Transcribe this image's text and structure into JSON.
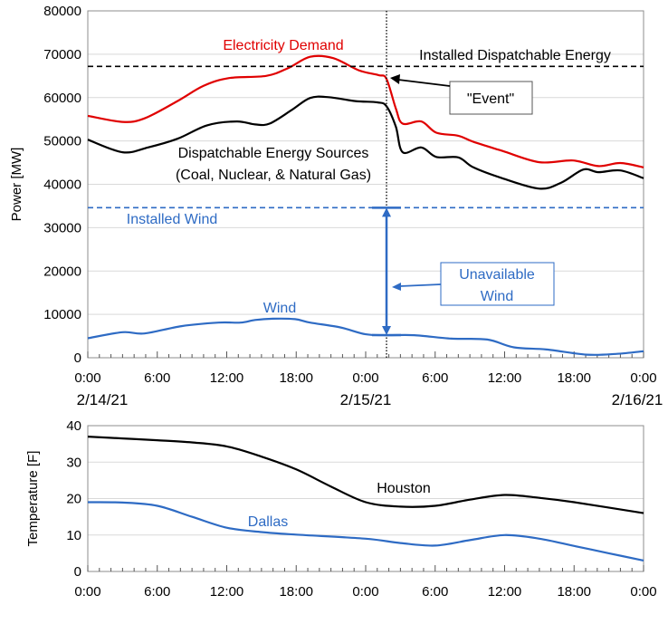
{
  "colors": {
    "demand": "#e00000",
    "dispatchable": "#000000",
    "wind": "#2e6bc4",
    "grid": "#d9d9d9",
    "houston": "#000000",
    "dallas": "#2e6bc4"
  },
  "chart_data": [
    {
      "type": "line",
      "ylabel": "Power [MW]",
      "ylim": [
        0,
        80000
      ],
      "yticks": [
        "0",
        "10000",
        "20000",
        "30000",
        "40000",
        "50000",
        "60000",
        "70000",
        "80000"
      ],
      "xlim_hours": [
        0,
        48
      ],
      "xticks": [
        "0:00",
        "6:00",
        "12:00",
        "18:00",
        "0:00",
        "6:00",
        "12:00",
        "18:00",
        "0:00"
      ],
      "date_labels": [
        "2/14/21",
        "2/15/21",
        "2/16/21"
      ],
      "grid": true,
      "series": [
        {
          "name": "Electricity Demand",
          "key": "demand",
          "x": [
            0,
            3,
            4.9,
            7.75,
            10,
            12.2,
            15.4,
            17.3,
            19.2,
            21.2,
            23.4,
            25.1,
            25.8,
            26.6,
            27.2,
            28.8,
            30.1,
            32,
            33.3,
            35.8,
            39,
            41.9,
            44.1,
            46,
            48
          ],
          "y": [
            55800,
            54400,
            55200,
            59200,
            62700,
            64500,
            65000,
            66800,
            69400,
            69100,
            66300,
            65200,
            64300,
            57500,
            54000,
            54500,
            51900,
            51200,
            49800,
            47700,
            45100,
            45500,
            44200,
            44900,
            43900
          ]
        },
        {
          "name": "Dispatchable Energy Sources",
          "key": "dispatchable",
          "x": [
            0,
            3,
            5.2,
            7.75,
            10.3,
            12.85,
            14.45,
            15.7,
            17.6,
            19.2,
            20.8,
            23.1,
            25,
            25.8,
            26.6,
            27.2,
            28.8,
            30.1,
            32,
            33.3,
            35.8,
            39,
            40.9,
            42.8,
            44.1,
            46,
            48
          ],
          "y": [
            50300,
            47400,
            48500,
            50500,
            53600,
            54500,
            53800,
            54000,
            57100,
            59900,
            60100,
            59200,
            58900,
            58000,
            53300,
            47400,
            48500,
            46300,
            46200,
            43900,
            41400,
            39000,
            40400,
            43400,
            42800,
            43200,
            41400
          ]
        },
        {
          "name": "Wind",
          "key": "wind",
          "x": [
            0,
            3,
            4.9,
            8.1,
            11.3,
            13.2,
            14.45,
            16,
            17.9,
            19.2,
            21.8,
            24,
            25.8,
            28.2,
            31.4,
            34.5,
            36.8,
            39.6,
            43.1,
            45.7,
            48
          ],
          "y": [
            4500,
            5900,
            5600,
            7300,
            8100,
            8100,
            8700,
            9000,
            8900,
            8100,
            7000,
            5400,
            5200,
            5200,
            4400,
            4200,
            2400,
            1900,
            700,
            900,
            1500
          ]
        }
      ],
      "reference_lines": [
        {
          "label": "Installed Dispatchable Energy",
          "y": 67200,
          "style": "dashed",
          "color": "#000000"
        },
        {
          "label": "Installed Wind",
          "y": 34600,
          "style": "dashed",
          "color": "#2e6bc4"
        }
      ],
      "event_line_hour": 25.8,
      "annotations": {
        "demand_label": "Electricity Demand",
        "installed_dispatchable_label": "Installed Dispatchable Energy",
        "event_label": "\"Event\"",
        "dispatchable_label_1": "Dispatchable Energy Sources",
        "dispatchable_label_2": "(Coal, Nuclear, & Natural Gas)",
        "installed_wind_label": "Installed Wind",
        "unavailable_wind_label_1": "Unavailable",
        "unavailable_wind_label_2": "Wind",
        "wind_label": "Wind"
      }
    },
    {
      "type": "line",
      "ylabel": "Temperature [F]",
      "ylim": [
        0,
        40
      ],
      "yticks": [
        "0",
        "10",
        "20",
        "30",
        "40"
      ],
      "xlim_hours": [
        0,
        48
      ],
      "xticks": [
        "0:00",
        "6:00",
        "12:00",
        "18:00",
        "0:00",
        "6:00",
        "12:00",
        "18:00",
        "0:00"
      ],
      "grid": true,
      "series": [
        {
          "name": "Houston",
          "key": "houston",
          "x": [
            0,
            3,
            6,
            9,
            12,
            15,
            18,
            21,
            24,
            27,
            30,
            33,
            36,
            39,
            42,
            48
          ],
          "y": [
            37,
            36.5,
            36,
            35.4,
            34.3,
            31.5,
            28,
            23.3,
            19,
            17.8,
            18,
            19.7,
            21,
            20.2,
            19,
            16
          ]
        },
        {
          "name": "Dallas",
          "key": "dallas",
          "x": [
            0,
            3,
            6,
            9,
            12,
            15,
            18,
            24,
            27,
            30,
            33,
            36,
            39,
            42,
            45,
            48
          ],
          "y": [
            19,
            18.9,
            18,
            15,
            12,
            10.8,
            10.1,
            9,
            7.8,
            7.1,
            8.6,
            10,
            9,
            7,
            5,
            3
          ]
        }
      ]
    }
  ]
}
